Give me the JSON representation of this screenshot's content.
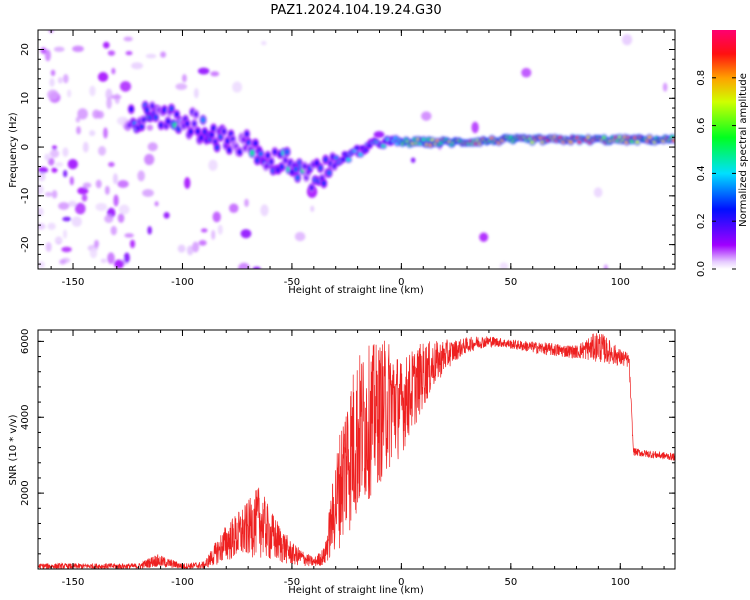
{
  "title": "PAZ1.2024.104.19.24.G30",
  "colors": {
    "snr_line": "#ee2020",
    "axes": "#000000"
  },
  "chart_data": [
    {
      "type": "heatmap",
      "name": "spectrogram",
      "xlabel": "Height of straight line (km)",
      "ylabel": "Frequency (Hz)",
      "xlim": [
        -166,
        125
      ],
      "ylim": [
        -25,
        24
      ],
      "xticks": [
        -150,
        -100,
        -50,
        0,
        50,
        100
      ],
      "xtick_labels": [
        "-150",
        "-100",
        "-50",
        "0",
        "50",
        "100"
      ],
      "yticks": [
        -20,
        -10,
        0,
        10,
        20
      ],
      "ytick_labels": [
        "-20",
        "-10",
        "0",
        "10",
        "20"
      ],
      "colormap": "gist_rainbow (white-purple-blue-cyan-green-yellow-red-pink)",
      "ridge": [
        {
          "x": -120,
          "y": 6
        },
        {
          "x": -110,
          "y": 6
        },
        {
          "x": -100,
          "y": 5
        },
        {
          "x": -90,
          "y": 4
        },
        {
          "x": -80,
          "y": 2
        },
        {
          "x": -70,
          "y": 0
        },
        {
          "x": -60,
          "y": -2
        },
        {
          "x": -50,
          "y": -4
        },
        {
          "x": -40,
          "y": -6
        },
        {
          "x": -30,
          "y": -3
        },
        {
          "x": -20,
          "y": -1
        },
        {
          "x": -10,
          "y": 1
        },
        {
          "x": 0,
          "y": 1
        },
        {
          "x": 10,
          "y": 1
        },
        {
          "x": 25,
          "y": 1
        },
        {
          "x": 50,
          "y": 1.5
        },
        {
          "x": 75,
          "y": 1.5
        },
        {
          "x": 100,
          "y": 1.5
        },
        {
          "x": 125,
          "y": 1.5
        }
      ],
      "colorbar": {
        "label": "Normalized spectral amplitude",
        "range": [
          0,
          1
        ],
        "ticks": [
          0.0,
          0.2,
          0.4,
          0.6,
          0.8
        ],
        "tick_labels": [
          "0.0",
          "0.2",
          "0.4",
          "0.6",
          "0.8"
        ]
      }
    },
    {
      "type": "line",
      "name": "snr",
      "xlabel": "Height of straight line (km)",
      "ylabel": "SNR (10 * v/v)",
      "xlim": [
        -166,
        125
      ],
      "ylim": [
        0,
        6300
      ],
      "xticks": [
        -150,
        -100,
        -50,
        0,
        50,
        100
      ],
      "xtick_labels": [
        "-150",
        "-100",
        "-50",
        "0",
        "50",
        "100"
      ],
      "yticks": [
        2000,
        4000,
        6000
      ],
      "ytick_labels": [
        "2000",
        "4000",
        "6000"
      ],
      "envelope": {
        "x": [
          -166,
          -120,
          -112,
          -100,
          -90,
          -80,
          -70,
          -65,
          -60,
          -50,
          -40,
          -35,
          -30,
          -25,
          -20,
          -15,
          -10,
          -5,
          0,
          5,
          10,
          15,
          20,
          25,
          30,
          35,
          40,
          45,
          50,
          60,
          70,
          80,
          90,
          100,
          104,
          106,
          110,
          125
        ],
        "low": [
          0,
          0,
          50,
          0,
          0,
          200,
          300,
          300,
          200,
          100,
          50,
          100,
          400,
          800,
          1200,
          1800,
          2200,
          2600,
          3000,
          3600,
          4200,
          4800,
          5200,
          5500,
          5700,
          5800,
          5850,
          5850,
          5800,
          5700,
          5600,
          5550,
          5450,
          5350,
          5300,
          3000,
          2950,
          2850
        ],
        "high": [
          150,
          150,
          400,
          150,
          200,
          1200,
          1800,
          2200,
          1600,
          700,
          300,
          600,
          3000,
          4800,
          5700,
          5900,
          6000,
          6100,
          5500,
          5800,
          6000,
          6000,
          6050,
          6050,
          6100,
          6150,
          6150,
          6100,
          6050,
          6000,
          5950,
          5900,
          6300,
          5800,
          5700,
          3200,
          3150,
          3050
        ]
      }
    }
  ]
}
